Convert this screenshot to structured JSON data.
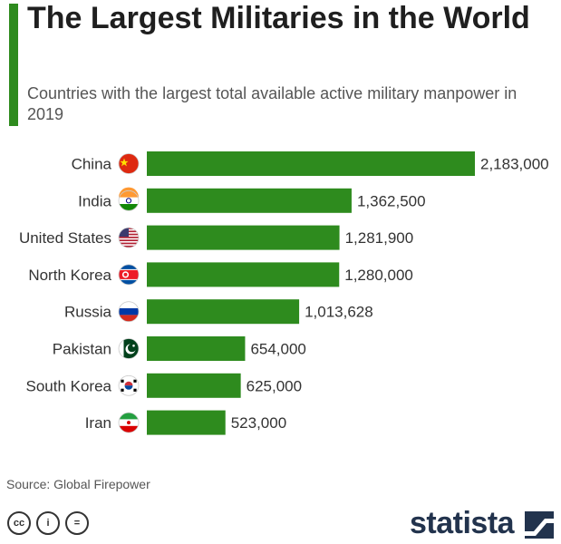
{
  "header": {
    "title": "The Largest Militaries in the World",
    "subtitle": "Countries with the largest total available active military manpower in 2019"
  },
  "colors": {
    "accent": "#2e8b1e",
    "bar": "#2e8b1e"
  },
  "chart_data": {
    "type": "bar",
    "orientation": "horizontal",
    "title": "The Largest Militaries in the World",
    "subtitle": "Countries with the largest total available active military manpower in 2019",
    "xlabel": "",
    "ylabel": "",
    "categories": [
      "China",
      "India",
      "United States",
      "North Korea",
      "Russia",
      "Pakistan",
      "South Korea",
      "Iran"
    ],
    "values": [
      2183000,
      1362500,
      1281900,
      1280000,
      1013628,
      654000,
      625000,
      523000
    ],
    "value_labels": [
      "2,183,000",
      "1,362,500",
      "1,281,900",
      "1,280,000",
      "1,013,628",
      "654,000",
      "625,000",
      "523,000"
    ],
    "flags": [
      "china-flag-icon",
      "india-flag-icon",
      "united-states-flag-icon",
      "north-korea-flag-icon",
      "russia-flag-icon",
      "pakistan-flag-icon",
      "south-korea-flag-icon",
      "iran-flag-icon"
    ],
    "xlim": [
      0,
      2183000
    ],
    "grid": false,
    "legend": "none"
  },
  "footer": {
    "source": "Source: Global Firepower",
    "license_icons": [
      "cc-icon",
      "attribution-icon",
      "no-derivatives-icon"
    ],
    "license_text": [
      "cc",
      "i",
      "="
    ],
    "brand": "statista"
  }
}
